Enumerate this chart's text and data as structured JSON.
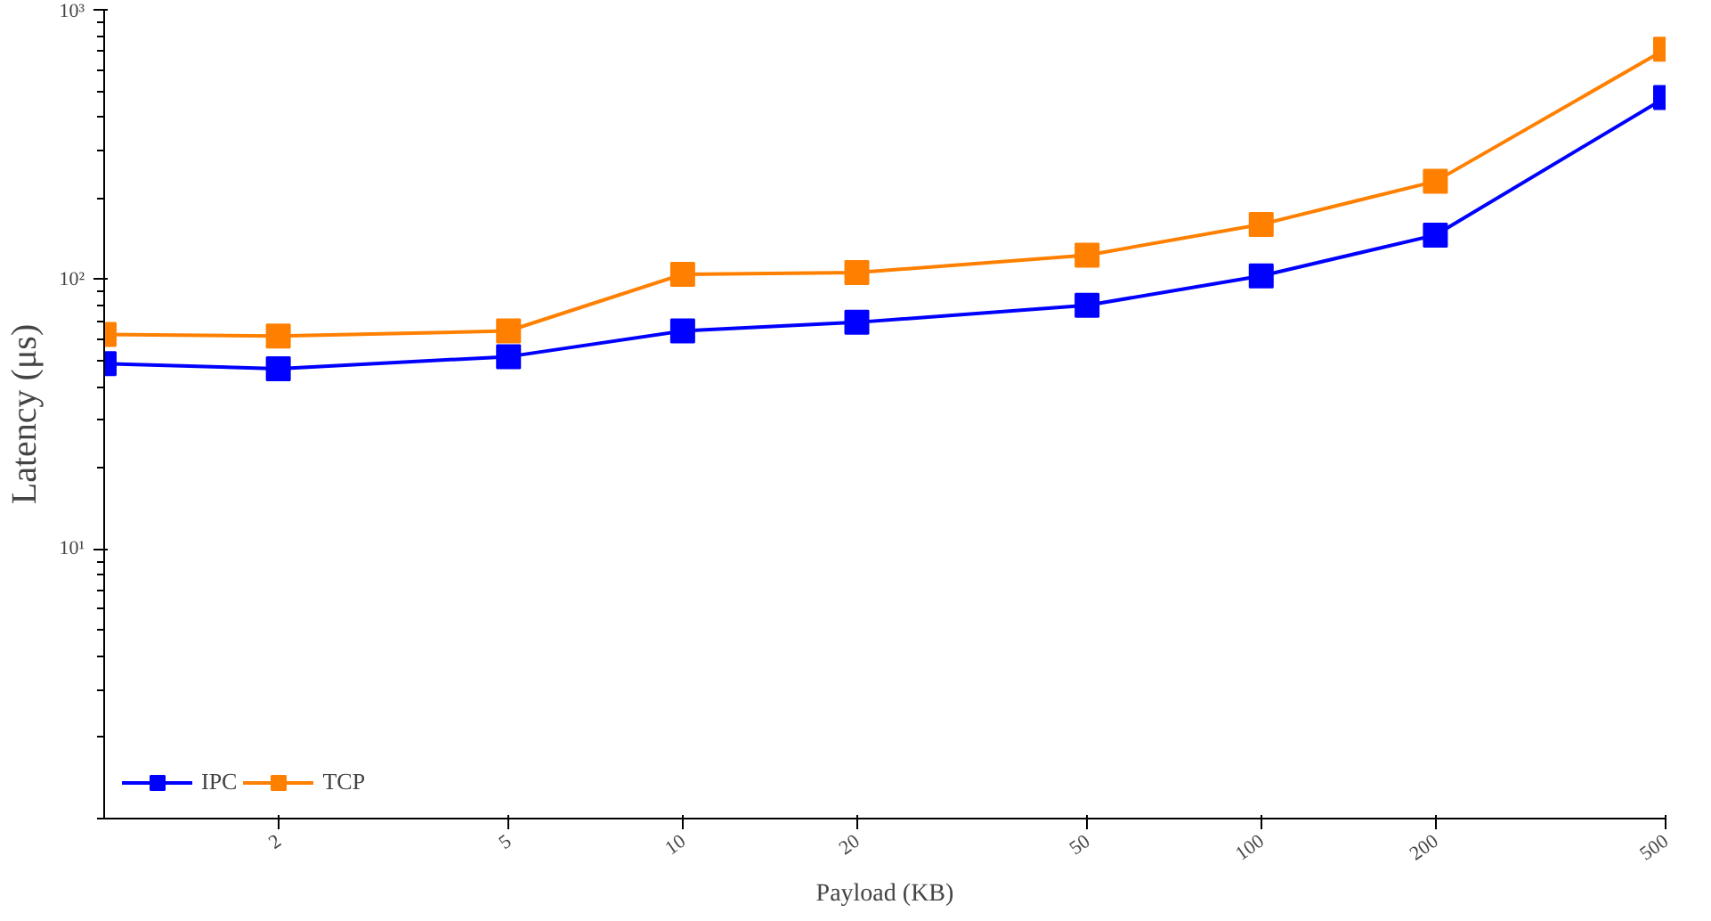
{
  "chart_data": {
    "type": "line",
    "xlabel": "Payload (KB)",
    "ylabel": "Latency (μs)",
    "log": "xy",
    "x": [
      1,
      2,
      5,
      10,
      20,
      50,
      100,
      200,
      500
    ],
    "series": [
      {
        "name": "IPC",
        "color": "#0000ff",
        "values": [
          48.7,
          46.6,
          51.7,
          64.4,
          69.3,
          80.2,
          103,
          146,
          473
        ]
      },
      {
        "name": "TCP",
        "color": "#ff8000",
        "values": [
          62.5,
          61.6,
          64.4,
          104.5,
          106,
          123,
          160,
          231,
          714
        ]
      }
    ],
    "xlim": [
      1,
      500
    ],
    "xticks": [
      2,
      5,
      10,
      20,
      50,
      100,
      200,
      500
    ],
    "ylim": [
      1,
      1000
    ],
    "yticks": [
      {
        "value": 10,
        "label": "10¹"
      },
      {
        "value": 100,
        "label": "10²"
      },
      {
        "value": 1000,
        "label": "10³"
      }
    ],
    "grid": false,
    "legend": "bottom left",
    "marker": "square",
    "line_style": "solid"
  }
}
